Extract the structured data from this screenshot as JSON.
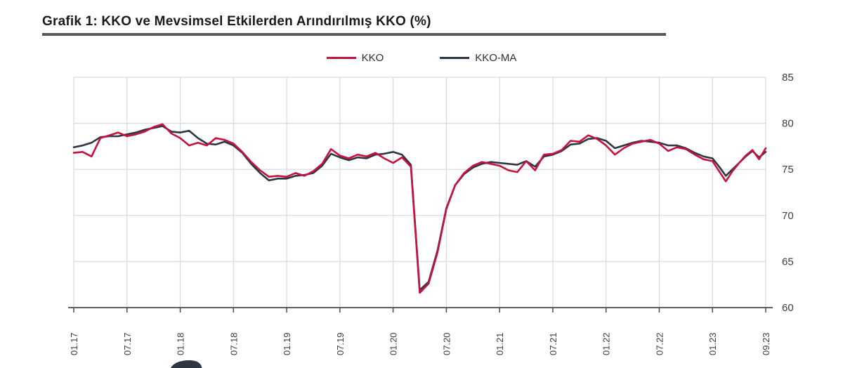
{
  "page": {
    "title": "Grafik 1: KKO ve Mevsimsel Etkilerden Arındırılmış KKO (%)"
  },
  "colors": {
    "kko_red": "#c6133e",
    "kko_ma_dark": "#2d3744",
    "gridline": "#d9d9d9",
    "axis": "#4a4a4a",
    "tick_text": "#3d3d3d",
    "title_rule": "#595959"
  },
  "chart_data": {
    "type": "line",
    "title": "Grafik 1: KKO ve Mevsimsel Etkilerden Arındırılmış KKO (%)",
    "xlabel": "",
    "ylabel": "",
    "ylim": [
      60,
      85
    ],
    "y_ticks": [
      85,
      80,
      75,
      70,
      65,
      60
    ],
    "y_axis_side": "right",
    "grid": true,
    "legend_position": "top-center",
    "x_unit": "monthly, 01.2017 - 09.2023 (81 points)",
    "x_tick_labels": [
      "01.17",
      "07.17",
      "01.18",
      "07.18",
      "01.19",
      "07.19",
      "01.20",
      "07.20",
      "01.21",
      "07.21",
      "01.22",
      "07.22",
      "01.23",
      "09.23"
    ],
    "x_tick_point_indices": [
      0,
      6,
      12,
      18,
      24,
      30,
      36,
      42,
      48,
      54,
      60,
      66,
      72,
      80
    ],
    "series": [
      {
        "name": "KKO",
        "color": "#c6133e",
        "values": [
          76.8,
          76.9,
          76.4,
          78.4,
          78.7,
          79.0,
          78.6,
          78.8,
          79.1,
          79.6,
          79.9,
          78.9,
          78.4,
          77.6,
          77.9,
          77.6,
          78.4,
          78.2,
          77.8,
          76.9,
          75.8,
          74.9,
          74.2,
          74.3,
          74.2,
          74.6,
          74.3,
          74.8,
          75.6,
          77.2,
          76.5,
          76.2,
          76.6,
          76.4,
          76.8,
          76.2,
          75.7,
          76.3,
          75.3,
          61.6,
          62.6,
          66.0,
          70.7,
          73.3,
          74.6,
          75.4,
          75.8,
          75.6,
          75.4,
          74.9,
          74.7,
          75.9,
          74.9,
          76.6,
          76.7,
          77.1,
          78.1,
          78.0,
          78.7,
          78.3,
          77.6,
          76.6,
          77.3,
          77.8,
          78.0,
          78.2,
          77.8,
          77.0,
          77.4,
          77.2,
          76.6,
          76.1,
          75.9,
          74.8,
          73.7,
          74.8,
          75.7,
          76.5,
          77.1,
          76.1,
          77.3
        ]
      },
      {
        "name": "KKO-MA",
        "color": "#2d3744",
        "values": [
          77.4,
          77.6,
          77.9,
          78.5,
          78.6,
          78.6,
          78.8,
          79.0,
          79.3,
          79.5,
          79.7,
          79.1,
          79.0,
          79.2,
          78.4,
          77.8,
          77.7,
          78.0,
          77.6,
          76.8,
          75.6,
          74.6,
          73.8,
          74.0,
          74.0,
          74.3,
          74.4,
          74.6,
          75.4,
          76.7,
          76.3,
          76.0,
          76.3,
          76.2,
          76.6,
          76.7,
          76.9,
          76.6,
          75.5,
          61.9,
          62.8,
          66.2,
          70.8,
          73.3,
          74.5,
          75.2,
          75.6,
          75.8,
          75.7,
          75.6,
          75.5,
          75.9,
          75.3,
          76.4,
          76.6,
          77.0,
          77.7,
          77.8,
          78.3,
          78.4,
          78.1,
          77.3,
          77.6,
          77.9,
          78.1,
          78.0,
          77.9,
          77.6,
          77.6,
          77.3,
          76.8,
          76.4,
          76.2,
          75.3,
          74.3,
          75.0,
          75.7,
          76.4,
          77.0,
          76.3,
          76.9
        ]
      }
    ]
  }
}
